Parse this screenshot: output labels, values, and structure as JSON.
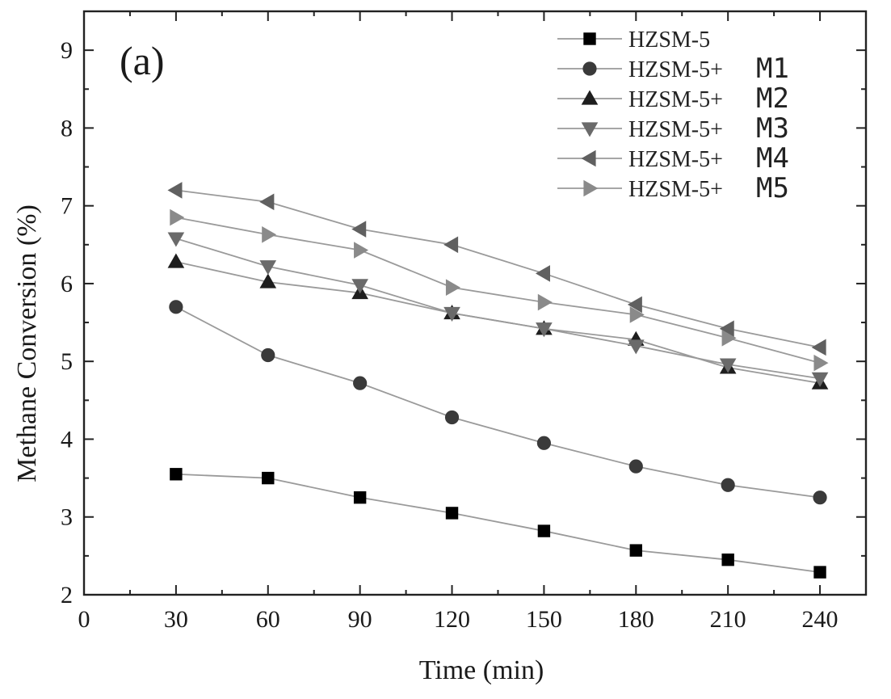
{
  "chart_data": {
    "type": "line",
    "panel_label": "(a)",
    "xlabel": "Time (min)",
    "ylabel": "Methane Conversion (%)",
    "xlim": [
      0,
      255
    ],
    "ylim": [
      2,
      9.5
    ],
    "x_ticks": [
      0,
      30,
      60,
      90,
      120,
      150,
      180,
      210,
      240
    ],
    "y_ticks": [
      2,
      3,
      4,
      5,
      6,
      7,
      8,
      9
    ],
    "x": [
      30,
      60,
      90,
      120,
      150,
      180,
      210,
      240
    ],
    "series": [
      {
        "name": "HZSM-5",
        "legend_base": "HZSM-5",
        "legend_suffix": "",
        "marker": "square",
        "color": "#000000",
        "values": [
          3.55,
          3.5,
          3.25,
          3.05,
          2.82,
          2.57,
          2.45,
          2.29
        ]
      },
      {
        "name": "HZSM-5+ M1",
        "legend_base": "HZSM-5+",
        "legend_suffix": "M1",
        "marker": "circle",
        "color": "#3a3a3a",
        "values": [
          5.7,
          5.08,
          4.72,
          4.28,
          3.95,
          3.65,
          3.41,
          3.25
        ]
      },
      {
        "name": "HZSM-5+ M2",
        "legend_base": "HZSM-5+",
        "legend_suffix": "M2",
        "marker": "triangle-up",
        "color": "#1e1e1e",
        "values": [
          6.28,
          6.02,
          5.88,
          5.62,
          5.42,
          5.28,
          4.92,
          4.72
        ]
      },
      {
        "name": "HZSM-5+M3",
        "legend_base": "HZSM-5+",
        "legend_suffix": "M3",
        "marker": "triangle-down",
        "color": "#6a6a6a",
        "values": [
          6.58,
          6.22,
          5.98,
          5.62,
          5.42,
          5.2,
          4.96,
          4.78
        ]
      },
      {
        "name": "HZSM-5+ M4",
        "legend_base": "HZSM-5+",
        "legend_suffix": "M4",
        "marker": "triangle-left",
        "color": "#606060",
        "values": [
          7.2,
          7.05,
          6.7,
          6.5,
          6.13,
          5.73,
          5.42,
          5.18
        ]
      },
      {
        "name": "HZSM-5+ M5",
        "legend_base": "HZSM-5+",
        "legend_suffix": "M5",
        "marker": "triangle-right",
        "color": "#8a8a8a",
        "values": [
          6.85,
          6.63,
          6.43,
          5.95,
          5.76,
          5.6,
          5.3,
          4.98
        ]
      }
    ],
    "legend_position": "top-right",
    "grid": false
  }
}
